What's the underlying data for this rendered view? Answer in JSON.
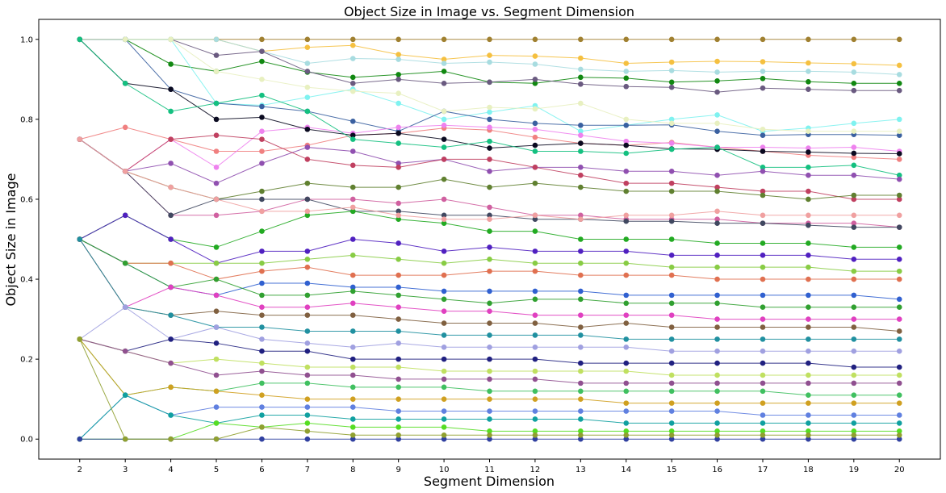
{
  "chart_data": {
    "type": "line",
    "title": "Object Size in Image vs. Segment Dimension",
    "xlabel": "Segment Dimension",
    "ylabel": "Object Size in Image",
    "x": [
      2,
      3,
      4,
      5,
      6,
      7,
      8,
      9,
      10,
      11,
      12,
      13,
      14,
      15,
      16,
      17,
      18,
      19,
      20
    ],
    "x_tick_labels": [
      "2",
      "3",
      "4",
      "5",
      "6",
      "7",
      "8",
      "9",
      "10",
      "11",
      "12",
      "13",
      "14",
      "15",
      "16",
      "17",
      "18",
      "19",
      "20"
    ],
    "y_ticks": [
      0.0,
      0.2,
      0.4,
      0.6,
      0.8,
      1.0
    ],
    "y_tick_labels": [
      "0.0",
      "0.2",
      "0.4",
      "0.6",
      "0.8",
      "1.0"
    ],
    "xlim": [
      1.1,
      20.9
    ],
    "ylim": [
      -0.05,
      1.05
    ],
    "grid": false,
    "legend": "none",
    "marker": "circle",
    "series": [
      {
        "color": "#a08030",
        "values": [
          1.0,
          1.0,
          1.0,
          1.0,
          1.0,
          1.0,
          1.0,
          1.0,
          1.0,
          1.0,
          1.0,
          1.0,
          1.0,
          1.0,
          1.0,
          1.0,
          1.0,
          1.0,
          1.0
        ]
      },
      {
        "color": "#f5c040",
        "values": [
          1.0,
          1.0,
          1.0,
          1.0,
          0.97,
          0.98,
          0.985,
          0.962,
          0.95,
          0.96,
          0.958,
          0.953,
          0.94,
          0.943,
          0.945,
          0.944,
          0.941,
          0.939,
          0.935
        ]
      },
      {
        "color": "#a8dce0",
        "values": [
          1.0,
          1.0,
          1.0,
          1.0,
          0.97,
          0.94,
          0.952,
          0.95,
          0.94,
          0.943,
          0.938,
          0.925,
          0.92,
          0.922,
          0.918,
          0.92,
          0.92,
          0.918,
          0.912
        ]
      },
      {
        "color": "#118811",
        "values": [
          1.0,
          1.0,
          0.938,
          0.92,
          0.945,
          0.918,
          0.905,
          0.912,
          0.92,
          0.893,
          0.89,
          0.905,
          0.903,
          0.893,
          0.896,
          0.902,
          0.894,
          0.89,
          0.89
        ]
      },
      {
        "color": "#6a5a80",
        "values": [
          1.0,
          1.0,
          1.0,
          0.96,
          0.97,
          0.92,
          0.89,
          0.9,
          0.89,
          0.893,
          0.9,
          0.888,
          0.882,
          0.88,
          0.868,
          0.878,
          0.875,
          0.872,
          0.872
        ]
      },
      {
        "color": "#7ff2f0",
        "values": [
          1.0,
          1.0,
          1.0,
          0.84,
          0.835,
          0.855,
          0.875,
          0.84,
          0.8,
          0.818,
          0.834,
          0.77,
          0.785,
          0.8,
          0.811,
          0.77,
          0.778,
          0.79,
          0.8
        ]
      },
      {
        "color": "#3a60a0",
        "values": [
          1.0,
          1.0,
          0.875,
          0.84,
          0.832,
          0.82,
          0.795,
          0.77,
          0.82,
          0.8,
          0.79,
          0.785,
          0.785,
          0.786,
          0.77,
          0.76,
          0.762,
          0.762,
          0.76
        ]
      },
      {
        "color": "#e8f0c0",
        "values": [
          1.0,
          1.0,
          1.0,
          0.92,
          0.9,
          0.88,
          0.87,
          0.865,
          0.82,
          0.83,
          0.826,
          0.84,
          0.8,
          0.79,
          0.79,
          0.775,
          0.77,
          0.77,
          0.77
        ]
      },
      {
        "color": "#f08080",
        "values": [
          0.75,
          0.78,
          0.75,
          0.72,
          0.72,
          0.735,
          0.76,
          0.765,
          0.778,
          0.773,
          0.755,
          0.74,
          0.735,
          0.742,
          0.73,
          0.72,
          0.71,
          0.705,
          0.7
        ]
      },
      {
        "color": "#ee82ee",
        "values": [
          0.75,
          0.67,
          0.75,
          0.68,
          0.77,
          0.78,
          0.765,
          0.78,
          0.785,
          0.78,
          0.775,
          0.76,
          0.745,
          0.74,
          0.73,
          0.73,
          0.728,
          0.73,
          0.72
        ]
      },
      {
        "color": "#0a0a20",
        "values": [
          1.0,
          0.89,
          0.875,
          0.8,
          0.805,
          0.775,
          0.76,
          0.765,
          0.75,
          0.728,
          0.735,
          0.74,
          0.735,
          0.726,
          0.725,
          0.72,
          0.718,
          0.715,
          0.714
        ]
      },
      {
        "color": "#14c080",
        "values": [
          1.0,
          0.89,
          0.82,
          0.84,
          0.86,
          0.82,
          0.75,
          0.74,
          0.73,
          0.745,
          0.72,
          0.72,
          0.715,
          0.725,
          0.73,
          0.68,
          0.68,
          0.685,
          0.66
        ]
      },
      {
        "color": "#9050b0",
        "values": [
          0.75,
          0.67,
          0.69,
          0.64,
          0.69,
          0.73,
          0.72,
          0.69,
          0.7,
          0.67,
          0.68,
          0.68,
          0.67,
          0.67,
          0.66,
          0.67,
          0.66,
          0.66,
          0.65
        ]
      },
      {
        "color": "#c04060",
        "values": [
          0.75,
          0.67,
          0.75,
          0.76,
          0.75,
          0.7,
          0.685,
          0.68,
          0.7,
          0.7,
          0.68,
          0.66,
          0.64,
          0.64,
          0.63,
          0.62,
          0.62,
          0.6,
          0.6
        ]
      },
      {
        "color": "#608030",
        "values": [
          0.75,
          0.67,
          0.63,
          0.6,
          0.62,
          0.64,
          0.63,
          0.63,
          0.65,
          0.63,
          0.64,
          0.63,
          0.62,
          0.62,
          0.62,
          0.61,
          0.6,
          0.61,
          0.61
        ]
      },
      {
        "color": "#d060a0",
        "values": [
          0.75,
          0.67,
          0.56,
          0.56,
          0.57,
          0.6,
          0.6,
          0.59,
          0.6,
          0.58,
          0.56,
          0.56,
          0.55,
          0.55,
          0.55,
          0.54,
          0.54,
          0.54,
          0.53
        ]
      },
      {
        "color": "#404860",
        "values": [
          0.75,
          0.67,
          0.56,
          0.6,
          0.6,
          0.6,
          0.57,
          0.57,
          0.56,
          0.56,
          0.55,
          0.55,
          0.545,
          0.545,
          0.54,
          0.54,
          0.535,
          0.53,
          0.53
        ]
      },
      {
        "color": "#22aa22",
        "values": [
          0.5,
          0.56,
          0.5,
          0.48,
          0.52,
          0.56,
          0.57,
          0.55,
          0.54,
          0.52,
          0.52,
          0.5,
          0.5,
          0.5,
          0.49,
          0.49,
          0.49,
          0.48,
          0.48
        ]
      },
      {
        "color": "#f0a0a0",
        "values": [
          0.75,
          0.67,
          0.63,
          0.6,
          0.57,
          0.57,
          0.58,
          0.56,
          0.55,
          0.55,
          0.56,
          0.55,
          0.56,
          0.56,
          0.57,
          0.56,
          0.56,
          0.56,
          0.56
        ]
      },
      {
        "color": "#5020c0",
        "values": [
          0.5,
          0.56,
          0.5,
          0.44,
          0.47,
          0.47,
          0.5,
          0.49,
          0.47,
          0.48,
          0.47,
          0.47,
          0.47,
          0.46,
          0.46,
          0.46,
          0.46,
          0.45,
          0.45
        ]
      },
      {
        "color": "#88cc44",
        "values": [
          0.5,
          0.44,
          0.44,
          0.44,
          0.44,
          0.45,
          0.46,
          0.45,
          0.44,
          0.45,
          0.44,
          0.44,
          0.44,
          0.43,
          0.43,
          0.43,
          0.43,
          0.42,
          0.42
        ]
      },
      {
        "color": "#e07050",
        "values": [
          0.5,
          0.44,
          0.44,
          0.4,
          0.42,
          0.43,
          0.41,
          0.41,
          0.41,
          0.42,
          0.42,
          0.41,
          0.41,
          0.41,
          0.4,
          0.4,
          0.4,
          0.4,
          0.4
        ]
      },
      {
        "color": "#3060d0",
        "values": [
          0.5,
          0.44,
          0.38,
          0.36,
          0.39,
          0.39,
          0.38,
          0.38,
          0.37,
          0.37,
          0.37,
          0.37,
          0.36,
          0.36,
          0.36,
          0.36,
          0.36,
          0.36,
          0.35
        ]
      },
      {
        "color": "#30a030",
        "values": [
          0.5,
          0.44,
          0.38,
          0.4,
          0.36,
          0.36,
          0.37,
          0.36,
          0.35,
          0.34,
          0.35,
          0.35,
          0.34,
          0.34,
          0.34,
          0.33,
          0.33,
          0.33,
          0.33
        ]
      },
      {
        "color": "#e040c0",
        "values": [
          0.5,
          0.33,
          0.38,
          0.36,
          0.33,
          0.33,
          0.34,
          0.33,
          0.32,
          0.32,
          0.31,
          0.31,
          0.31,
          0.31,
          0.3,
          0.3,
          0.3,
          0.3,
          0.3
        ]
      },
      {
        "color": "#806040",
        "values": [
          0.5,
          0.33,
          0.31,
          0.32,
          0.31,
          0.31,
          0.31,
          0.3,
          0.29,
          0.29,
          0.29,
          0.28,
          0.29,
          0.28,
          0.28,
          0.28,
          0.28,
          0.28,
          0.27
        ]
      },
      {
        "color": "#2090a0",
        "values": [
          0.5,
          0.33,
          0.31,
          0.28,
          0.28,
          0.27,
          0.27,
          0.27,
          0.26,
          0.26,
          0.26,
          0.26,
          0.25,
          0.25,
          0.25,
          0.25,
          0.25,
          0.25,
          0.25
        ]
      },
      {
        "color": "#a0a0e0",
        "values": [
          0.25,
          0.33,
          0.25,
          0.28,
          0.25,
          0.24,
          0.23,
          0.24,
          0.23,
          0.23,
          0.23,
          0.23,
          0.23,
          0.22,
          0.22,
          0.22,
          0.22,
          0.22,
          0.22
        ]
      },
      {
        "color": "#202080",
        "values": [
          0.25,
          0.22,
          0.25,
          0.24,
          0.22,
          0.22,
          0.2,
          0.2,
          0.2,
          0.2,
          0.2,
          0.19,
          0.19,
          0.19,
          0.19,
          0.19,
          0.19,
          0.18,
          0.18
        ]
      },
      {
        "color": "#c0e060",
        "values": [
          0.25,
          0.22,
          0.19,
          0.2,
          0.19,
          0.18,
          0.18,
          0.18,
          0.17,
          0.17,
          0.17,
          0.17,
          0.17,
          0.16,
          0.16,
          0.16,
          0.16,
          0.16,
          0.16
        ]
      },
      {
        "color": "#905090",
        "values": [
          0.25,
          0.22,
          0.19,
          0.16,
          0.17,
          0.16,
          0.16,
          0.15,
          0.15,
          0.15,
          0.15,
          0.14,
          0.14,
          0.14,
          0.14,
          0.14,
          0.14,
          0.14,
          0.14
        ]
      },
      {
        "color": "#40c060",
        "values": [
          0.25,
          0.11,
          0.13,
          0.12,
          0.14,
          0.14,
          0.13,
          0.13,
          0.13,
          0.12,
          0.12,
          0.12,
          0.12,
          0.12,
          0.12,
          0.12,
          0.11,
          0.11,
          0.11
        ]
      },
      {
        "color": "#d0a020",
        "values": [
          0.25,
          0.11,
          0.13,
          0.12,
          0.11,
          0.1,
          0.1,
          0.1,
          0.1,
          0.1,
          0.1,
          0.1,
          0.09,
          0.09,
          0.09,
          0.09,
          0.09,
          0.09,
          0.09
        ]
      },
      {
        "color": "#6080e0",
        "values": [
          0.0,
          0.11,
          0.06,
          0.08,
          0.08,
          0.08,
          0.08,
          0.07,
          0.07,
          0.07,
          0.07,
          0.07,
          0.07,
          0.07,
          0.07,
          0.06,
          0.06,
          0.06,
          0.06
        ]
      },
      {
        "color": "#10a0a0",
        "values": [
          0.0,
          0.11,
          0.06,
          0.04,
          0.06,
          0.06,
          0.05,
          0.05,
          0.05,
          0.05,
          0.05,
          0.05,
          0.04,
          0.04,
          0.04,
          0.04,
          0.04,
          0.04,
          0.04
        ]
      },
      {
        "color": "#55dd22",
        "values": [
          0.0,
          0.0,
          0.0,
          0.04,
          0.03,
          0.04,
          0.03,
          0.03,
          0.03,
          0.02,
          0.02,
          0.02,
          0.02,
          0.02,
          0.02,
          0.02,
          0.02,
          0.02,
          0.02
        ]
      },
      {
        "color": "#3040a0",
        "values": [
          0.0,
          0.0,
          0.0,
          0.0,
          0.0,
          0.0,
          0.0,
          0.0,
          0.0,
          0.0,
          0.0,
          0.0,
          0.0,
          0.0,
          0.0,
          0.0,
          0.0,
          0.0,
          0.0
        ]
      },
      {
        "color": "#90a030",
        "values": [
          0.25,
          0.0,
          0.0,
          0.0,
          0.03,
          0.02,
          0.01,
          0.01,
          0.01,
          0.01,
          0.01,
          0.01,
          0.01,
          0.01,
          0.01,
          0.01,
          0.01,
          0.01,
          0.01
        ]
      }
    ]
  }
}
